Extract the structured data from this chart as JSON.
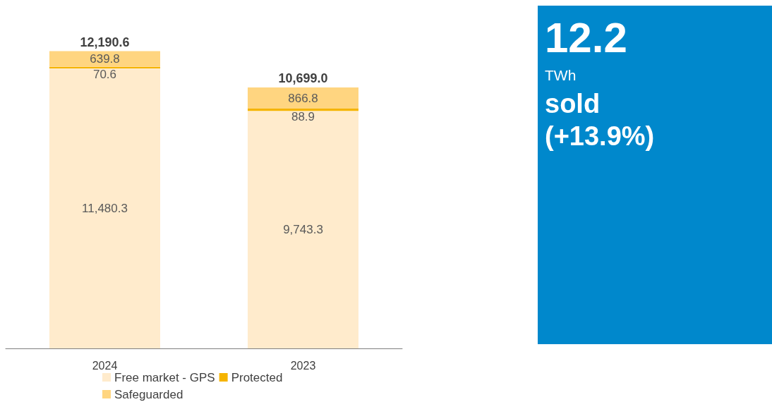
{
  "chart_data": [
    {
      "type": "bar",
      "stacked": true,
      "categories": [
        "2024",
        "2023"
      ],
      "series": [
        {
          "name": "Free market - GPS",
          "color": "#ffebcc",
          "values": [
            11480.3,
            9743.3
          ],
          "value_labels": [
            "11,480.3",
            "9,743.3"
          ]
        },
        {
          "name": "Protected",
          "color": "#f5b400",
          "values": [
            70.6,
            88.9
          ],
          "value_labels": [
            "70.6",
            "88.9"
          ]
        },
        {
          "name": "Safeguarded",
          "color": "#ffd580",
          "values": [
            639.8,
            866.8
          ],
          "value_labels": [
            "639.8",
            "866.8"
          ]
        }
      ],
      "totals": [
        "12,190.6",
        "10,699.0"
      ],
      "legend": "bottom"
    },
    {
      "type": "other",
      "title": "12.2",
      "subtitle": "TWh",
      "annotations": [
        "sold",
        "(+13.9%)"
      ]
    }
  ]
}
